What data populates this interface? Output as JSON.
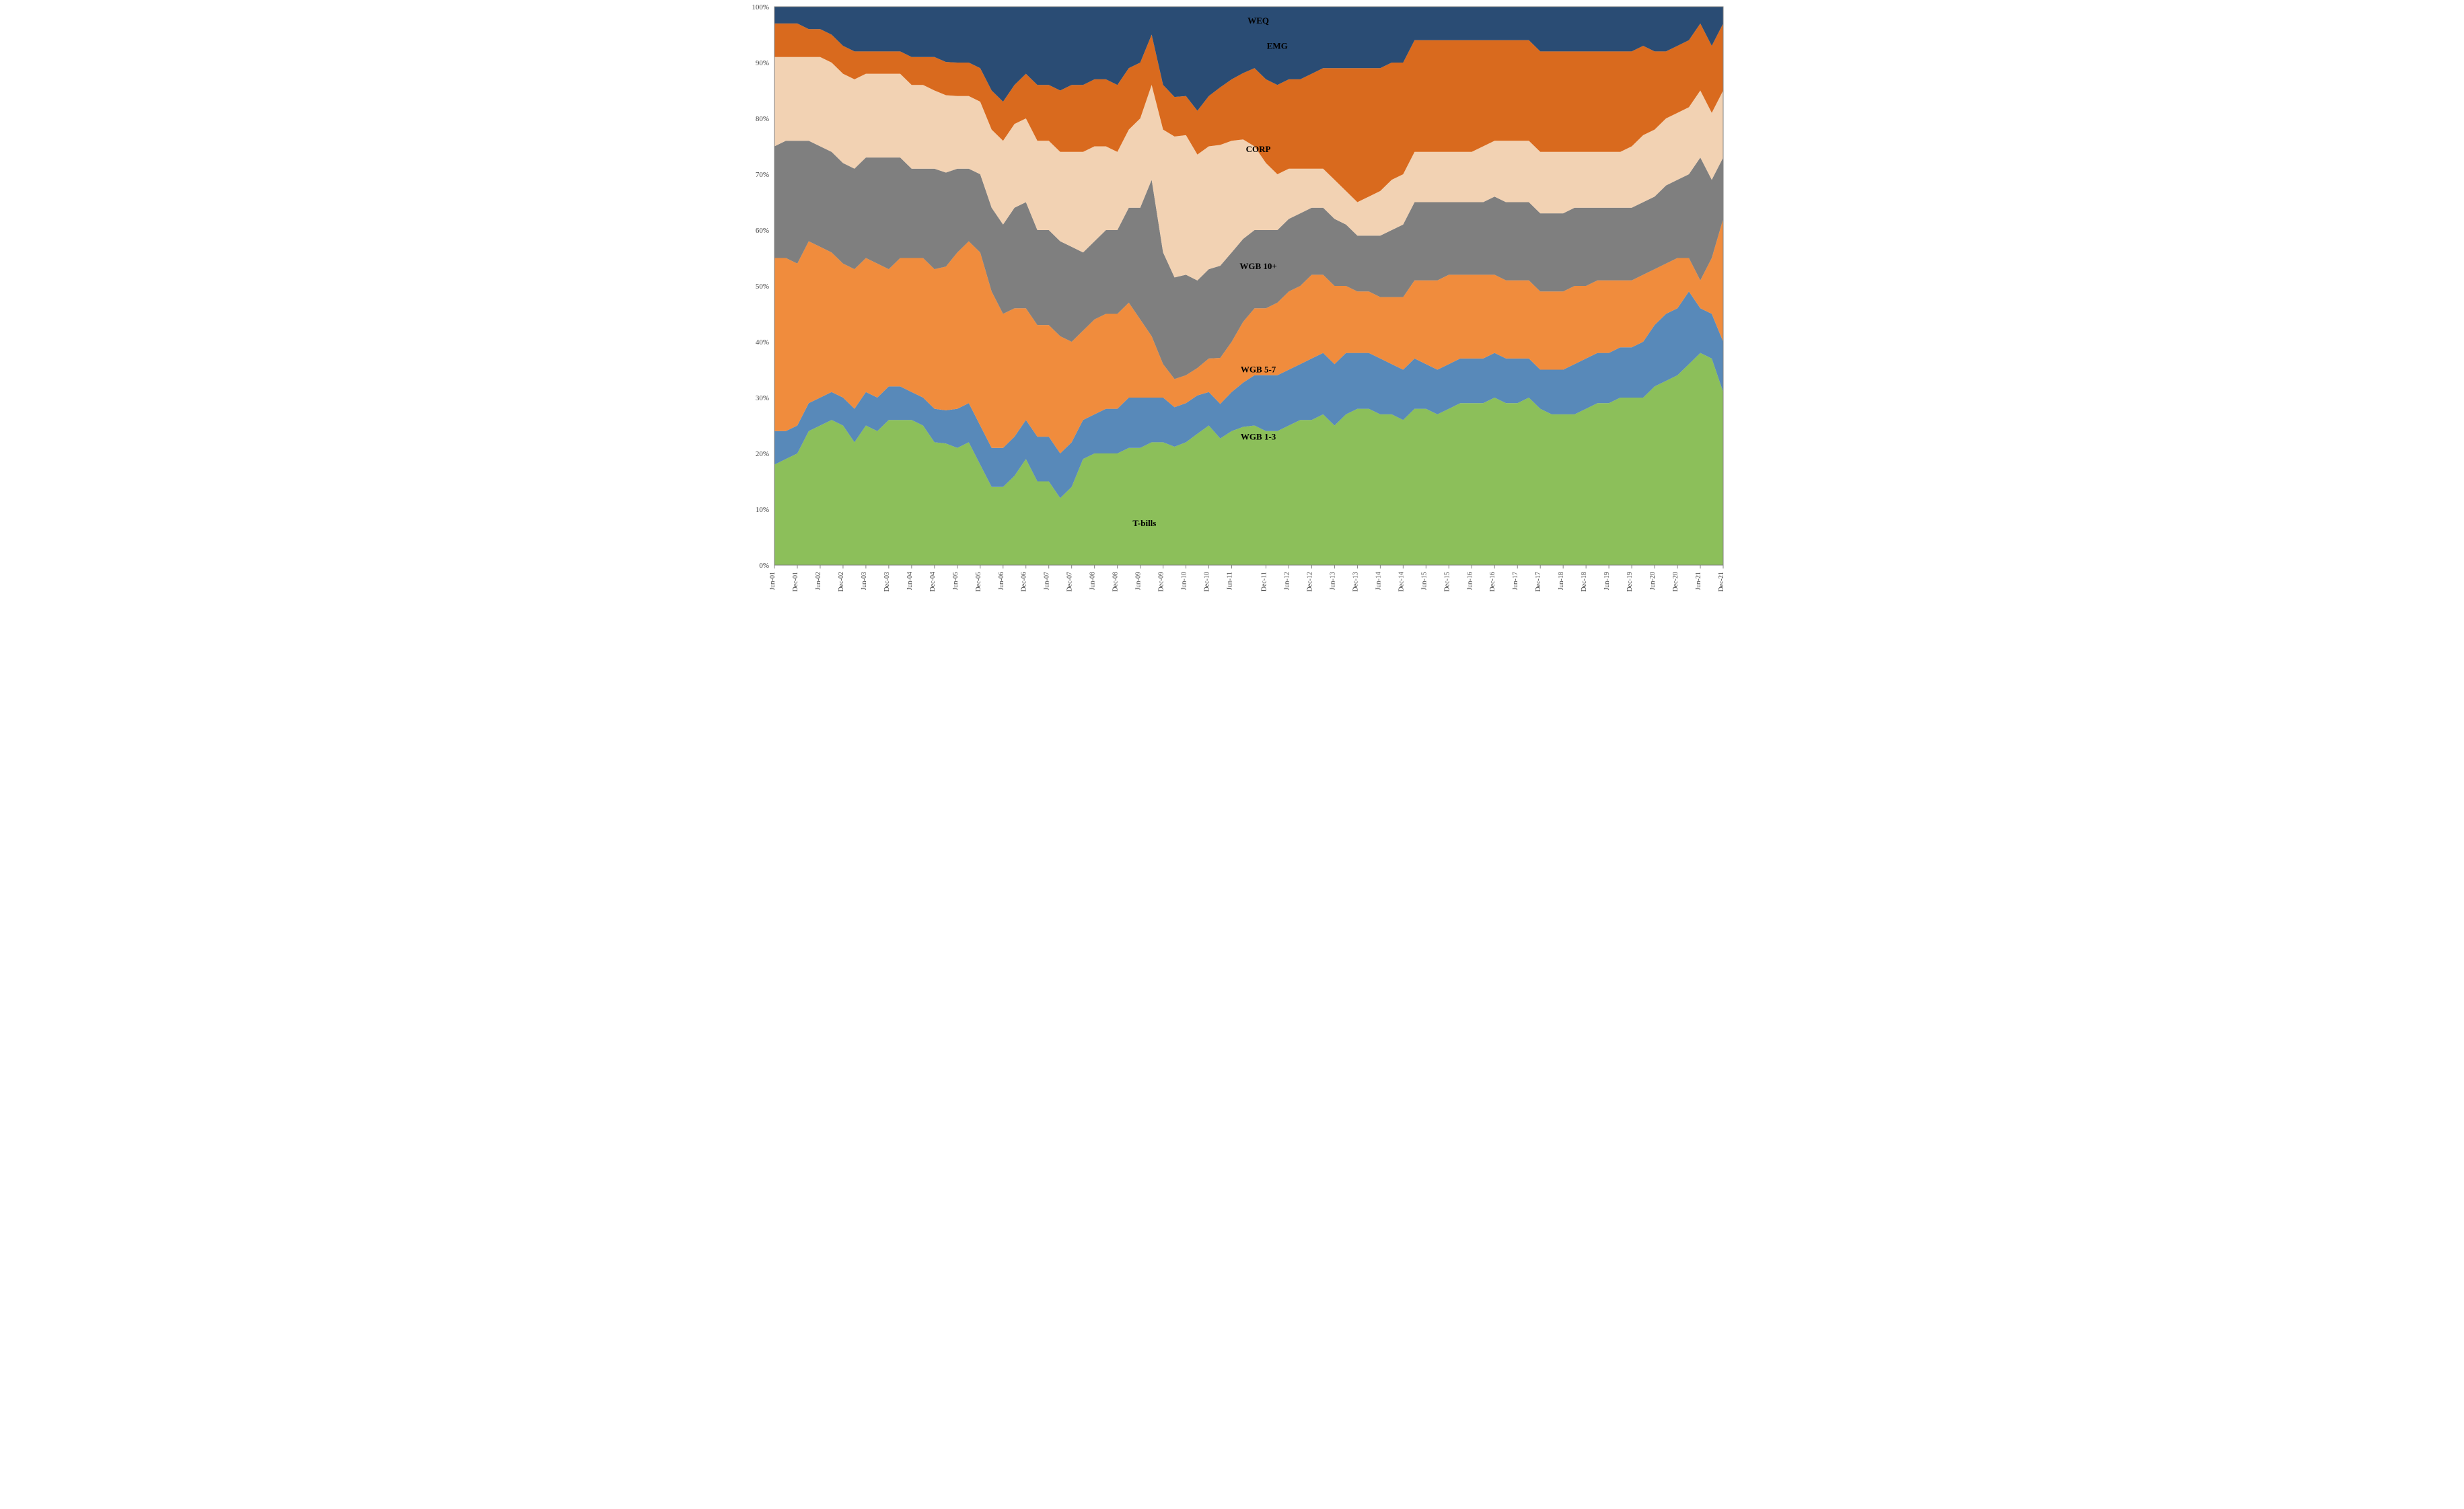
{
  "chart": {
    "type": "stacked-area-100pct",
    "background_color": "#ffffff",
    "plot_background_color": "#ffffff",
    "grid_color": "#d9d9d9",
    "axis_color": "#808080",
    "ylim": [
      0,
      100
    ],
    "ytick_step": 10,
    "y_suffix": "%",
    "label_fontsize": 11,
    "series_label_fontsize": 13,
    "series_label_fontweight": "bold",
    "x_labels": [
      "Jun-01",
      "Dec-01",
      "Jun-02",
      "Dec-02",
      "Jun-03",
      "Dec-03",
      "Jun-04",
      "Dec-04",
      "Jun-05",
      "Dec-05",
      "Jun-06",
      "Dec-06",
      "Jun-07",
      "Dec-07",
      "Jun-08",
      "Dec-08",
      "Jun-09",
      "Dec-09",
      "Jun-10",
      "Dec-10",
      "Jun-11",
      "Dec-11",
      "Jun-12",
      "Dec-12",
      "Jun-13",
      "Dec-13",
      "Jun-14",
      "Dec-14",
      "Jun-15",
      "Dec-15",
      "Jun-16",
      "Dec-16",
      "Jun-17",
      "Dec-17",
      "Jun-18",
      "Dec-18",
      "Jun-19",
      "Dec-19",
      "Jun-20",
      "Dec-20",
      "Jun-21",
      "Dec-21"
    ],
    "series_order": [
      "T-bills",
      "WGB 1-3",
      "WGB 5-7",
      "WGB 10+",
      "CORP",
      "EMG",
      "WEQ"
    ],
    "series": {
      "T-bills": {
        "label": "T-bills",
        "color": "#8cbf5a",
        "label_pos_frac": 0.39,
        "label_y_frac": 0.07,
        "values": [
          18,
          19,
          20,
          24,
          25,
          26,
          25,
          22,
          25,
          24,
          26,
          26,
          26,
          25,
          22,
          22,
          21,
          22,
          18,
          14,
          14,
          16,
          19,
          15,
          15,
          12,
          14,
          19,
          20,
          20,
          20,
          21,
          21,
          22,
          22,
          21,
          22,
          24,
          25,
          22,
          24,
          25,
          25,
          24,
          24,
          25,
          26,
          26,
          27,
          25,
          27,
          28,
          28,
          27,
          27,
          26,
          28,
          28,
          27,
          28,
          29,
          29,
          29,
          30,
          29,
          29,
          30,
          28,
          27,
          27,
          27,
          28,
          29,
          29,
          30,
          30,
          30,
          32,
          33,
          34,
          36,
          38,
          37,
          31
        ]
      },
      "WGB 1-3": {
        "label": "WGB 1-3",
        "color": "#5889b9",
        "label_pos_frac": 0.51,
        "label_y_frac": 0.225,
        "values": [
          6,
          5,
          5,
          5,
          5,
          5,
          5,
          6,
          6,
          6,
          6,
          6,
          5,
          5,
          6,
          6,
          7,
          7,
          7,
          7,
          7,
          7,
          7,
          8,
          8,
          8,
          8,
          7,
          7,
          8,
          8,
          9,
          9,
          8,
          8,
          7,
          7,
          7,
          6,
          6,
          7,
          8,
          9,
          10,
          10,
          10,
          10,
          11,
          11,
          11,
          11,
          10,
          10,
          10,
          9,
          9,
          9,
          8,
          8,
          8,
          8,
          8,
          8,
          8,
          8,
          8,
          7,
          7,
          8,
          8,
          9,
          9,
          9,
          9,
          9,
          9,
          10,
          11,
          12,
          12,
          13,
          8,
          8,
          9
        ]
      },
      "WGB 5-7": {
        "label": "WGB 5-7",
        "color": "#f08c3d",
        "label_pos_frac": 0.51,
        "label_y_frac": 0.345,
        "values": [
          31,
          31,
          29,
          29,
          27,
          25,
          24,
          25,
          24,
          24,
          21,
          23,
          24,
          25,
          25,
          26,
          28,
          29,
          31,
          28,
          24,
          23,
          20,
          20,
          20,
          21,
          18,
          16,
          17,
          17,
          17,
          17,
          14,
          11,
          6,
          5,
          5,
          5,
          6,
          8,
          9,
          11,
          12,
          12,
          13,
          14,
          14,
          15,
          14,
          14,
          12,
          11,
          11,
          11,
          12,
          13,
          14,
          15,
          16,
          16,
          15,
          15,
          15,
          14,
          14,
          14,
          14,
          14,
          14,
          14,
          14,
          13,
          13,
          13,
          12,
          12,
          12,
          10,
          9,
          9,
          6,
          5,
          10,
          22
        ]
      },
      "WGB 10+": {
        "label": "WGB 10+",
        "color": "#7f7f7f",
        "label_pos_frac": 0.51,
        "label_y_frac": 0.53,
        "values": [
          20,
          21,
          22,
          18,
          18,
          18,
          18,
          18,
          18,
          19,
          20,
          18,
          16,
          16,
          18,
          17,
          15,
          13,
          14,
          15,
          16,
          18,
          19,
          17,
          17,
          17,
          17,
          14,
          14,
          15,
          15,
          17,
          20,
          28,
          20,
          18,
          18,
          16,
          16,
          16,
          16,
          15,
          14,
          14,
          13,
          13,
          13,
          12,
          12,
          12,
          11,
          10,
          10,
          11,
          12,
          13,
          14,
          14,
          14,
          13,
          13,
          13,
          13,
          14,
          14,
          14,
          14,
          14,
          14,
          14,
          14,
          14,
          13,
          13,
          13,
          13,
          13,
          13,
          14,
          14,
          15,
          22,
          14,
          11
        ]
      },
      "CORP": {
        "label": "CORP",
        "color": "#f2d2b3",
        "label_pos_frac": 0.51,
        "label_y_frac": 0.74,
        "values": [
          16,
          15,
          15,
          15,
          16,
          16,
          16,
          16,
          15,
          15,
          15,
          15,
          15,
          15,
          14,
          14,
          13,
          13,
          13,
          14,
          15,
          15,
          15,
          16,
          16,
          16,
          17,
          18,
          17,
          15,
          14,
          14,
          16,
          17,
          22,
          25,
          25,
          23,
          22,
          21,
          20,
          18,
          15,
          12,
          10,
          9,
          8,
          7,
          7,
          7,
          6,
          6,
          7,
          8,
          9,
          9,
          9,
          9,
          9,
          9,
          9,
          9,
          10,
          10,
          11,
          11,
          11,
          11,
          11,
          11,
          10,
          10,
          10,
          10,
          10,
          11,
          12,
          12,
          12,
          12,
          12,
          12,
          12,
          12
        ]
      },
      "EMG": {
        "label": "EMG",
        "color": "#d96a1e",
        "label_pos_frac": 0.53,
        "label_y_frac": 0.925,
        "values": [
          6,
          6,
          6,
          5,
          5,
          5,
          5,
          5,
          4,
          4,
          4,
          4,
          5,
          5,
          6,
          6,
          6,
          6,
          6,
          7,
          7,
          7,
          8,
          10,
          10,
          11,
          12,
          12,
          12,
          12,
          12,
          11,
          10,
          9,
          8,
          7,
          7,
          8,
          9,
          10,
          11,
          12,
          14,
          15,
          16,
          16,
          16,
          17,
          18,
          20,
          22,
          24,
          23,
          22,
          21,
          20,
          20,
          20,
          20,
          20,
          20,
          20,
          19,
          18,
          18,
          18,
          18,
          18,
          18,
          18,
          18,
          18,
          18,
          18,
          18,
          17,
          16,
          14,
          12,
          12,
          12,
          12,
          12,
          12
        ]
      },
      "WEQ": {
        "label": "WEQ",
        "color": "#2a4c74",
        "label_pos_frac": 0.51,
        "label_y_frac": 0.97,
        "values": [
          3,
          3,
          3,
          4,
          4,
          5,
          7,
          8,
          8,
          8,
          8,
          8,
          9,
          9,
          9,
          10,
          10,
          10,
          11,
          15,
          17,
          14,
          12,
          14,
          14,
          15,
          14,
          14,
          13,
          13,
          14,
          11,
          10,
          5,
          14,
          16,
          16,
          19,
          16,
          14,
          13,
          12,
          11,
          13,
          14,
          13,
          13,
          12,
          11,
          11,
          11,
          11,
          11,
          11,
          10,
          10,
          6,
          6,
          6,
          6,
          6,
          6,
          6,
          6,
          6,
          6,
          6,
          8,
          8,
          8,
          8,
          8,
          8,
          8,
          8,
          8,
          7,
          8,
          8,
          7,
          6,
          3,
          7,
          3
        ]
      }
    },
    "series_label_positions_note": "label_pos_frac is horizontal fraction of plot; label_y_frac is vertical fraction (0=bottom)"
  }
}
